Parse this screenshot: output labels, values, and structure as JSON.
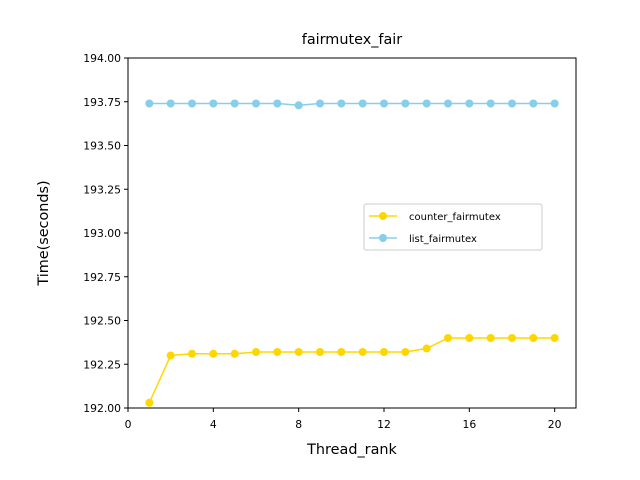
{
  "chart_data": {
    "type": "line",
    "title": "fairmutex_fair",
    "xlabel": "Thread_rank",
    "ylabel": "Time(seconds)",
    "xlim": [
      0,
      21
    ],
    "ylim": [
      192.0,
      194.0
    ],
    "xticks": [
      0,
      4,
      8,
      12,
      16,
      20
    ],
    "yticks": [
      192.0,
      192.25,
      192.5,
      192.75,
      193.0,
      193.25,
      193.5,
      193.75,
      194.0
    ],
    "ytick_labels": [
      "192.00",
      "192.25",
      "192.50",
      "192.75",
      "193.00",
      "193.25",
      "193.50",
      "193.75",
      "194.00"
    ],
    "grid": false,
    "legend_position": "center-right",
    "x": [
      1,
      2,
      3,
      4,
      5,
      6,
      7,
      8,
      9,
      10,
      11,
      12,
      13,
      14,
      15,
      16,
      17,
      18,
      19,
      20
    ],
    "series": [
      {
        "name": "counter_fairmutex",
        "color": "#FFD700",
        "marker": "circle",
        "values": [
          192.03,
          192.3,
          192.31,
          192.31,
          192.31,
          192.32,
          192.32,
          192.32,
          192.32,
          192.32,
          192.32,
          192.32,
          192.32,
          192.34,
          192.4,
          192.4,
          192.4,
          192.4,
          192.4,
          192.4
        ]
      },
      {
        "name": "list_fairmutex",
        "color": "#87CEEB",
        "marker": "circle",
        "values": [
          193.74,
          193.74,
          193.74,
          193.74,
          193.74,
          193.74,
          193.74,
          193.73,
          193.74,
          193.74,
          193.74,
          193.74,
          193.74,
          193.74,
          193.74,
          193.74,
          193.74,
          193.74,
          193.74,
          193.74
        ]
      }
    ]
  }
}
